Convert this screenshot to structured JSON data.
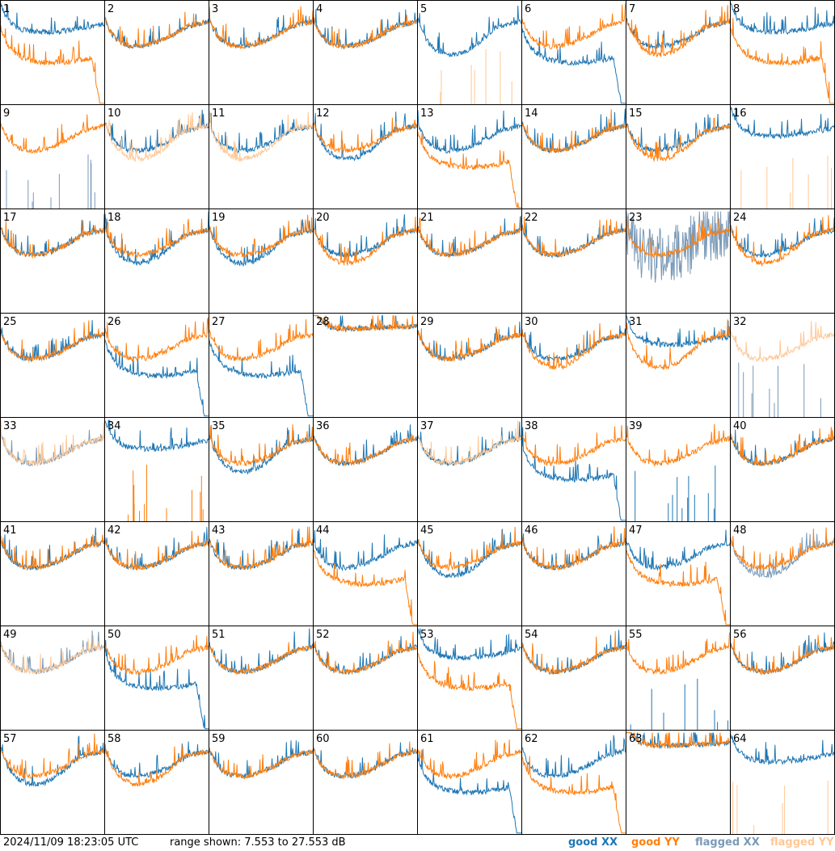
{
  "footer": {
    "timestamp": "2024/11/09 18:23:05 UTC",
    "range_text": "range shown: 7.553 to 27.553 dB"
  },
  "legend": [
    {
      "label": "good XX",
      "color": "#1f77b4"
    },
    {
      "label": "good YY",
      "color": "#ff7f0e"
    },
    {
      "label": "flagged XX",
      "color": "#7a9ab8"
    },
    {
      "label": "flagged YY",
      "color": "#ffc896"
    }
  ],
  "chart_data": {
    "type": "line",
    "layout": "small multiples 8x8",
    "y_range_db": [
      7.553,
      27.553
    ],
    "panels": [
      {
        "id": "1",
        "xx": "good",
        "yy": "good",
        "xx_profile": "high",
        "yy_profile": "droop"
      },
      {
        "id": "2",
        "xx": "good",
        "yy": "good",
        "xx_profile": "normal",
        "yy_profile": "normal"
      },
      {
        "id": "3",
        "xx": "good",
        "yy": "good",
        "xx_profile": "normal",
        "yy_profile": "normal"
      },
      {
        "id": "4",
        "xx": "good",
        "yy": "good",
        "xx_profile": "normal",
        "yy_profile": "normal"
      },
      {
        "id": "5",
        "xx": "good",
        "yy": "flagged",
        "xx_profile": "dip",
        "yy_profile": "spikes"
      },
      {
        "id": "6",
        "xx": "good",
        "yy": "good",
        "xx_profile": "droop",
        "yy_profile": "normal"
      },
      {
        "id": "7",
        "xx": "good",
        "yy": "good",
        "xx_profile": "normal",
        "yy_profile": "dip"
      },
      {
        "id": "8",
        "xx": "good",
        "yy": "good",
        "xx_profile": "high",
        "yy_profile": "droop"
      },
      {
        "id": "9",
        "xx": "flagged",
        "yy": "good",
        "xx_profile": "spikes",
        "yy_profile": "normal"
      },
      {
        "id": "10",
        "xx": "good",
        "yy": "flagged",
        "xx_profile": "normal",
        "yy_profile": "dip"
      },
      {
        "id": "11",
        "xx": "good",
        "yy": "flagged",
        "xx_profile": "normal",
        "yy_profile": "dip"
      },
      {
        "id": "12",
        "xx": "good",
        "yy": "good",
        "xx_profile": "dip",
        "yy_profile": "normal"
      },
      {
        "id": "13",
        "xx": "good",
        "yy": "good",
        "xx_profile": "normal",
        "yy_profile": "droop"
      },
      {
        "id": "14",
        "xx": "good",
        "yy": "good",
        "xx_profile": "normal",
        "yy_profile": "normal"
      },
      {
        "id": "15",
        "xx": "good",
        "yy": "good",
        "xx_profile": "normal",
        "yy_profile": "dip"
      },
      {
        "id": "16",
        "xx": "good",
        "yy": "flagged",
        "xx_profile": "high",
        "yy_profile": "spikes"
      },
      {
        "id": "17",
        "xx": "good",
        "yy": "good",
        "xx_profile": "normal",
        "yy_profile": "normal"
      },
      {
        "id": "18",
        "xx": "good",
        "yy": "good",
        "xx_profile": "dip",
        "yy_profile": "normal"
      },
      {
        "id": "19",
        "xx": "good",
        "yy": "good",
        "xx_profile": "dip",
        "yy_profile": "normal"
      },
      {
        "id": "20",
        "xx": "good",
        "yy": "good",
        "xx_profile": "normal",
        "yy_profile": "dip"
      },
      {
        "id": "21",
        "xx": "good",
        "yy": "good",
        "xx_profile": "normal",
        "yy_profile": "normal"
      },
      {
        "id": "22",
        "xx": "good",
        "yy": "good",
        "xx_profile": "normal",
        "yy_profile": "normal"
      },
      {
        "id": "23",
        "xx": "flagged",
        "yy": "good",
        "xx_profile": "noisy",
        "yy_profile": "normal"
      },
      {
        "id": "24",
        "xx": "good",
        "yy": "good",
        "xx_profile": "normal",
        "yy_profile": "dip"
      },
      {
        "id": "25",
        "xx": "good",
        "yy": "good",
        "xx_profile": "normal",
        "yy_profile": "normal"
      },
      {
        "id": "26",
        "xx": "good",
        "yy": "good",
        "xx_profile": "droop",
        "yy_profile": "normal"
      },
      {
        "id": "27",
        "xx": "good",
        "yy": "good",
        "xx_profile": "droop",
        "yy_profile": "normal"
      },
      {
        "id": "28",
        "xx": "good",
        "yy": "good",
        "xx_profile": "flat",
        "yy_profile": "flat"
      },
      {
        "id": "29",
        "xx": "good",
        "yy": "good",
        "xx_profile": "normal",
        "yy_profile": "normal"
      },
      {
        "id": "30",
        "xx": "good",
        "yy": "good",
        "xx_profile": "normal",
        "yy_profile": "dip"
      },
      {
        "id": "31",
        "xx": "good",
        "yy": "good",
        "xx_profile": "high",
        "yy_profile": "dip"
      },
      {
        "id": "32",
        "xx": "flagged",
        "yy": "flagged",
        "xx_profile": "spikes",
        "yy_profile": "normal"
      },
      {
        "id": "33",
        "xx": "flagged",
        "yy": "flagged",
        "xx_profile": "normal",
        "yy_profile": "normal"
      },
      {
        "id": "34",
        "xx": "good",
        "yy": "good",
        "xx_profile": "high",
        "yy_profile": "spikes"
      },
      {
        "id": "35",
        "xx": "good",
        "yy": "good",
        "xx_profile": "dip",
        "yy_profile": "normal"
      },
      {
        "id": "36",
        "xx": "good",
        "yy": "good",
        "xx_profile": "normal",
        "yy_profile": "normal"
      },
      {
        "id": "37",
        "xx": "good",
        "yy": "flagged",
        "xx_profile": "normal",
        "yy_profile": "normal"
      },
      {
        "id": "38",
        "xx": "good",
        "yy": "good",
        "xx_profile": "droop",
        "yy_profile": "normal"
      },
      {
        "id": "39",
        "xx": "good",
        "yy": "good",
        "xx_profile": "spikes",
        "yy_profile": "normal"
      },
      {
        "id": "40",
        "xx": "good",
        "yy": "good",
        "xx_profile": "normal",
        "yy_profile": "normal"
      },
      {
        "id": "41",
        "xx": "good",
        "yy": "good",
        "xx_profile": "normal",
        "yy_profile": "normal"
      },
      {
        "id": "42",
        "xx": "good",
        "yy": "good",
        "xx_profile": "normal",
        "yy_profile": "normal"
      },
      {
        "id": "43",
        "xx": "good",
        "yy": "good",
        "xx_profile": "normal",
        "yy_profile": "normal"
      },
      {
        "id": "44",
        "xx": "good",
        "yy": "good",
        "xx_profile": "normal",
        "yy_profile": "droop"
      },
      {
        "id": "45",
        "xx": "good",
        "yy": "good",
        "xx_profile": "dip",
        "yy_profile": "normal"
      },
      {
        "id": "46",
        "xx": "good",
        "yy": "good",
        "xx_profile": "normal",
        "yy_profile": "normal"
      },
      {
        "id": "47",
        "xx": "good",
        "yy": "good",
        "xx_profile": "normal",
        "yy_profile": "droop"
      },
      {
        "id": "48",
        "xx": "flagged",
        "yy": "good",
        "xx_profile": "dip",
        "yy_profile": "normal"
      },
      {
        "id": "49",
        "xx": "flagged",
        "yy": "flagged",
        "xx_profile": "normal",
        "yy_profile": "normal"
      },
      {
        "id": "50",
        "xx": "good",
        "yy": "good",
        "xx_profile": "droop",
        "yy_profile": "normal"
      },
      {
        "id": "51",
        "xx": "good",
        "yy": "good",
        "xx_profile": "normal",
        "yy_profile": "normal"
      },
      {
        "id": "52",
        "xx": "good",
        "yy": "good",
        "xx_profile": "normal",
        "yy_profile": "normal"
      },
      {
        "id": "53",
        "xx": "good",
        "yy": "good",
        "xx_profile": "high",
        "yy_profile": "droop"
      },
      {
        "id": "54",
        "xx": "good",
        "yy": "good",
        "xx_profile": "normal",
        "yy_profile": "normal"
      },
      {
        "id": "55",
        "xx": "good",
        "yy": "good",
        "xx_profile": "spikes",
        "yy_profile": "normal"
      },
      {
        "id": "56",
        "xx": "good",
        "yy": "good",
        "xx_profile": "normal",
        "yy_profile": "normal"
      },
      {
        "id": "57",
        "xx": "good",
        "yy": "good",
        "xx_profile": "dip",
        "yy_profile": "normal"
      },
      {
        "id": "58",
        "xx": "good",
        "yy": "good",
        "xx_profile": "normal",
        "yy_profile": "dip"
      },
      {
        "id": "59",
        "xx": "good",
        "yy": "good",
        "xx_profile": "normal",
        "yy_profile": "normal"
      },
      {
        "id": "60",
        "xx": "good",
        "yy": "good",
        "xx_profile": "normal",
        "yy_profile": "normal"
      },
      {
        "id": "61",
        "xx": "good",
        "yy": "good",
        "xx_profile": "droop",
        "yy_profile": "normal"
      },
      {
        "id": "62",
        "xx": "good",
        "yy": "good",
        "xx_profile": "normal",
        "yy_profile": "droop"
      },
      {
        "id": "63",
        "xx": "good",
        "yy": "good",
        "xx_profile": "flat",
        "yy_profile": "flat"
      },
      {
        "id": "64",
        "xx": "good",
        "yy": "flagged",
        "xx_profile": "high",
        "yy_profile": "spikes"
      }
    ]
  }
}
